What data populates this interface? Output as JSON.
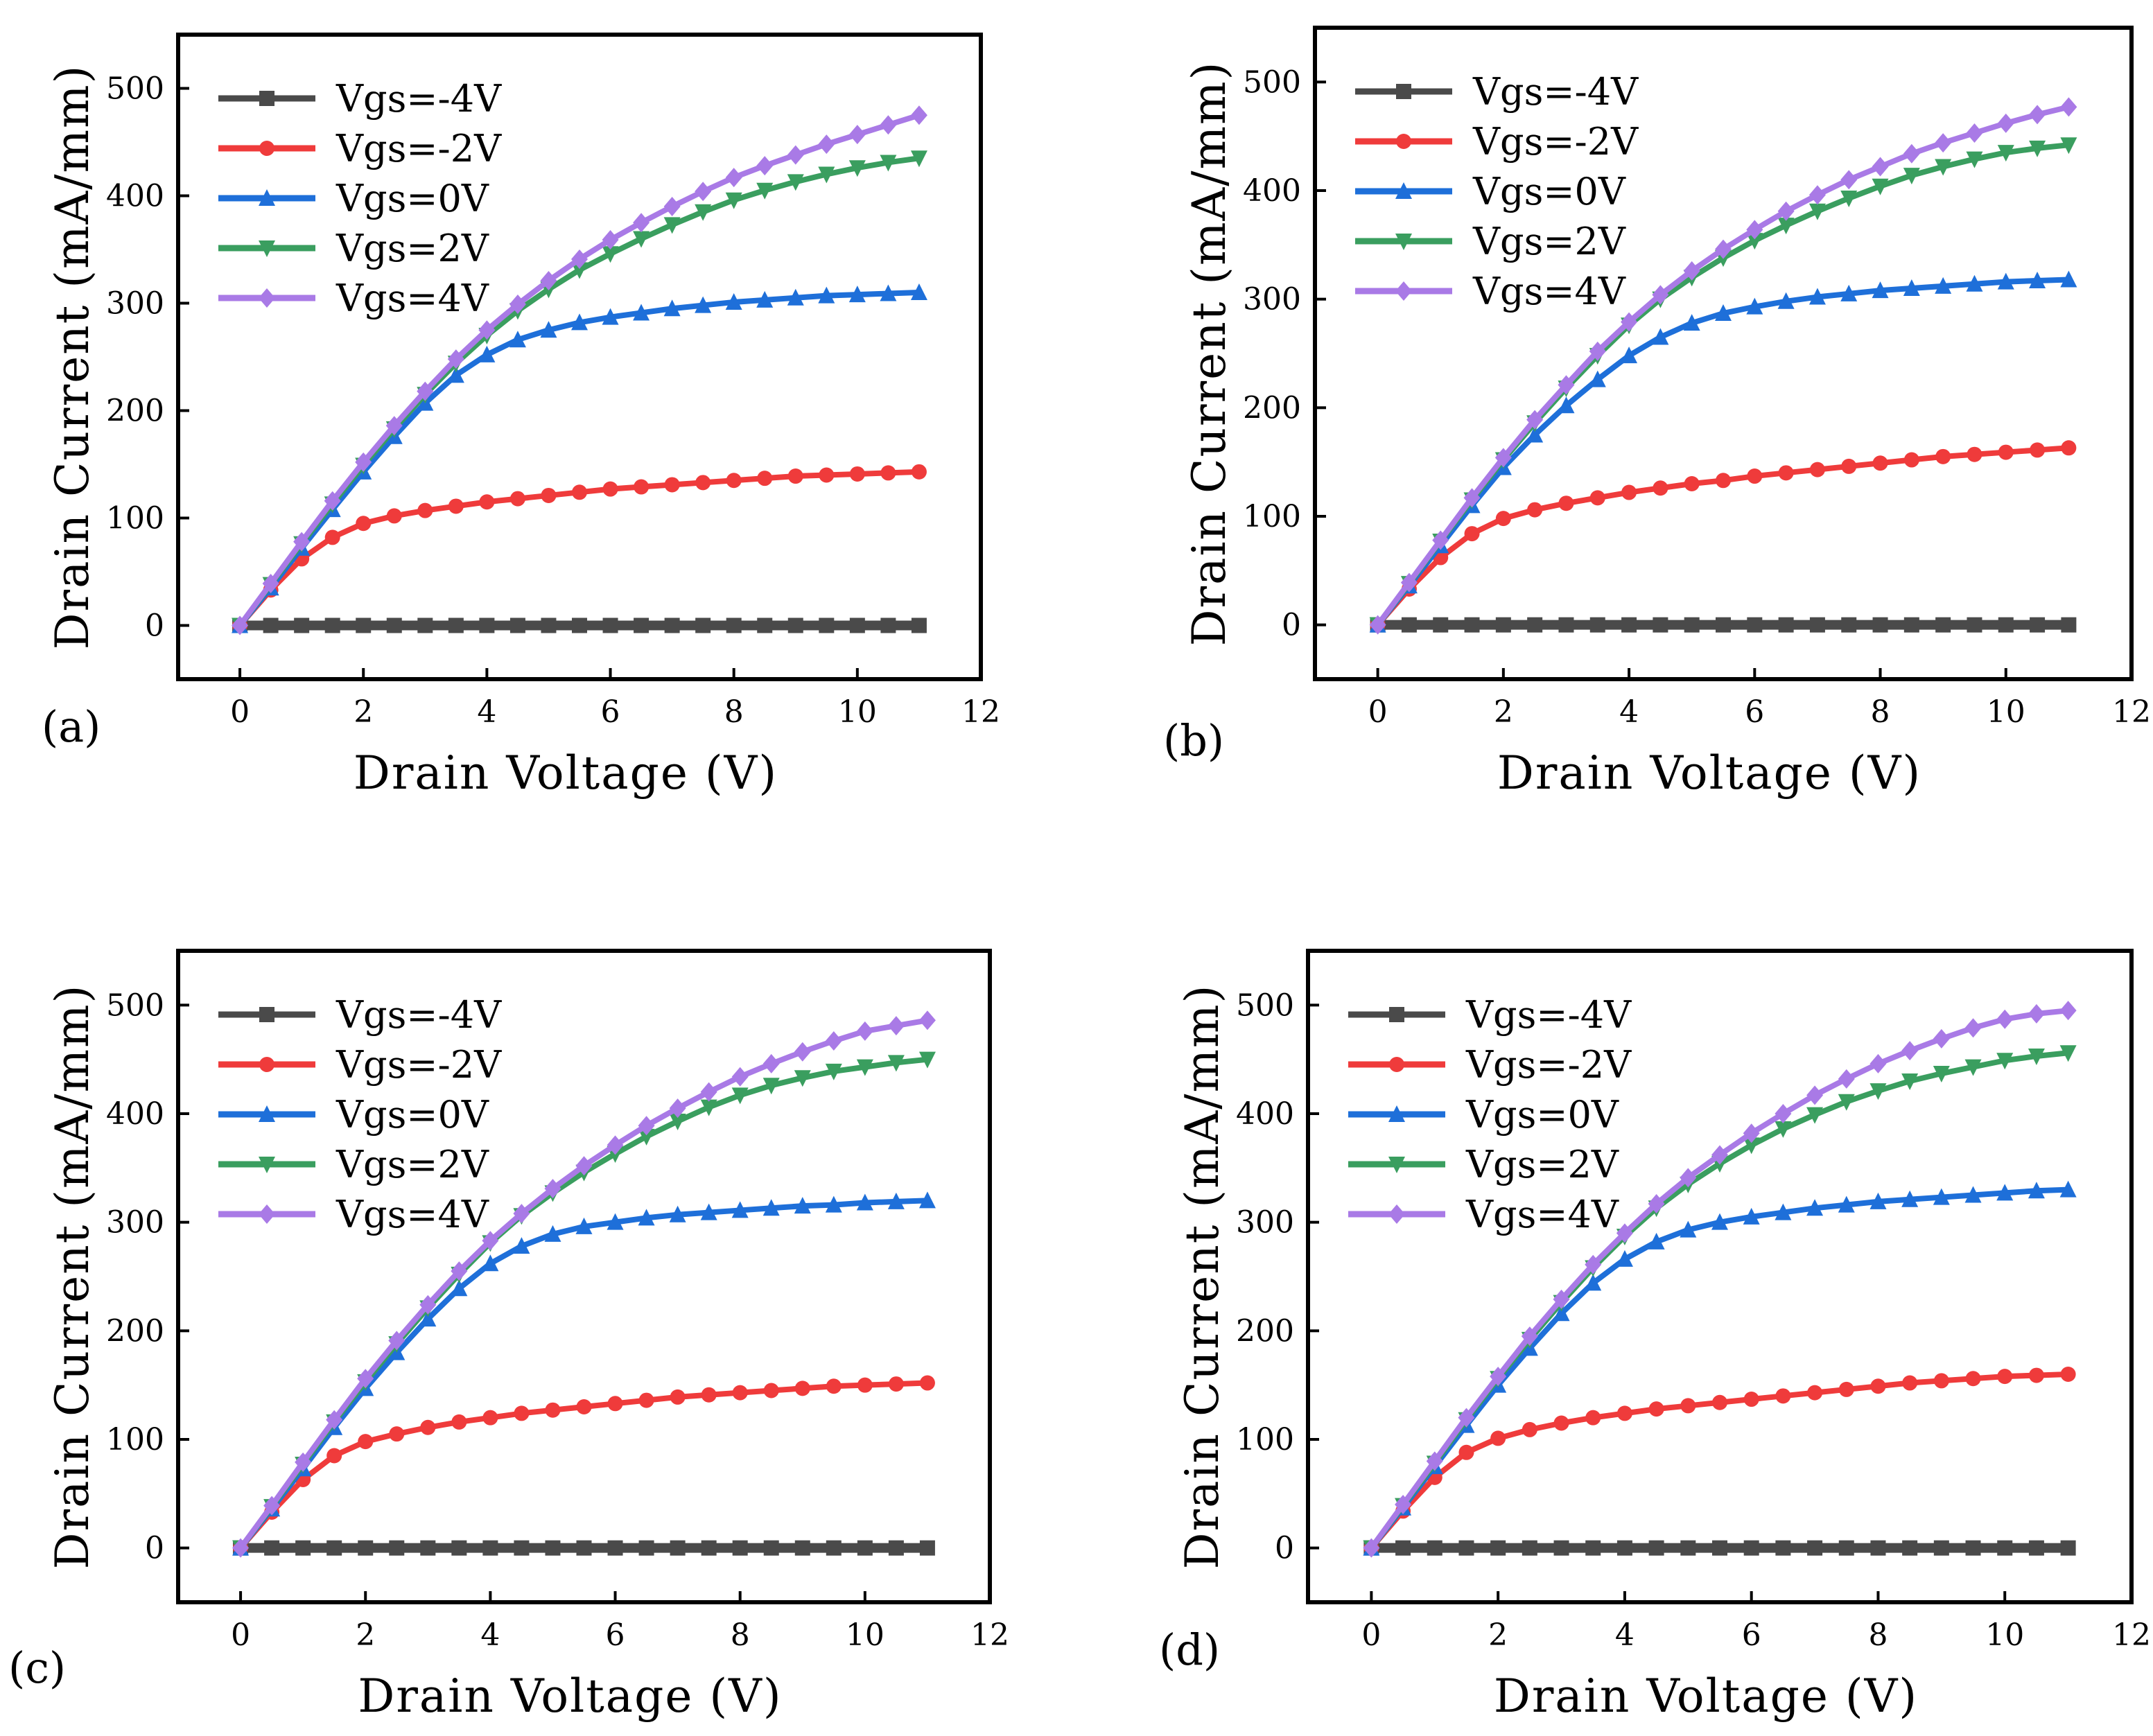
{
  "colors": {
    "Vgs=-4V": "#4a4a4a",
    "Vgs=-2V": "#ef3b3b",
    "Vgs=0V": "#1e6fd9",
    "Vgs=2V": "#3a9e5f",
    "Vgs=4V": "#a97ae6"
  },
  "chart_data": [
    {
      "panel_label": "(a)",
      "type": "line",
      "xlabel": "Drain Voltage (V)",
      "ylabel": "Drain Current (mA/mm)",
      "xlim": [
        -1,
        12
      ],
      "ylim": [
        -50,
        550
      ],
      "xticks": [
        0,
        2,
        4,
        6,
        8,
        10,
        12
      ],
      "yticks": [
        0,
        100,
        200,
        300,
        400,
        500
      ],
      "legend_position": "top-left",
      "x": [
        0,
        0.5,
        1,
        1.5,
        2,
        2.5,
        3,
        3.5,
        4,
        4.5,
        5,
        5.5,
        6,
        6.5,
        7,
        7.5,
        8,
        8.5,
        9,
        9.5,
        10,
        10.5,
        11
      ],
      "series": [
        {
          "name": "Vgs=-4V",
          "marker": "square",
          "values": [
            0,
            0,
            0,
            0,
            0,
            0,
            0,
            0,
            0,
            0,
            0,
            0,
            0,
            0,
            0,
            0,
            0,
            0,
            0,
            0,
            0,
            0,
            0
          ]
        },
        {
          "name": "Vgs=-2V",
          "marker": "circle",
          "values": [
            0,
            33,
            62,
            82,
            95,
            102,
            107,
            111,
            115,
            118,
            121,
            124,
            127,
            129,
            131,
            133,
            135,
            137,
            139,
            140,
            141,
            142,
            143
          ]
        },
        {
          "name": "Vgs=0V",
          "marker": "triangle-up",
          "values": [
            0,
            35,
            72,
            108,
            143,
            176,
            207,
            233,
            252,
            266,
            275,
            282,
            287,
            291,
            295,
            298,
            301,
            303,
            305,
            307,
            308,
            309,
            310
          ]
        },
        {
          "name": "Vgs=2V",
          "marker": "triangle-down",
          "values": [
            0,
            38,
            76,
            113,
            149,
            183,
            215,
            244,
            270,
            293,
            313,
            331,
            346,
            360,
            373,
            385,
            396,
            405,
            413,
            420,
            426,
            431,
            435
          ]
        },
        {
          "name": "Vgs=4V",
          "marker": "diamond",
          "values": [
            0,
            39,
            78,
            116,
            152,
            186,
            218,
            248,
            275,
            299,
            321,
            341,
            359,
            375,
            390,
            404,
            417,
            428,
            438,
            448,
            457,
            466,
            475
          ]
        }
      ]
    },
    {
      "panel_label": "(b)",
      "type": "line",
      "xlabel": "Drain Voltage (V)",
      "ylabel": "Drain Current (mA/mm)",
      "xlim": [
        -1,
        12
      ],
      "ylim": [
        -50,
        550
      ],
      "xticks": [
        0,
        2,
        4,
        6,
        8,
        10,
        12
      ],
      "yticks": [
        0,
        100,
        200,
        300,
        400,
        500
      ],
      "legend_position": "top-left",
      "x": [
        0,
        0.5,
        1,
        1.5,
        2,
        2.5,
        3,
        3.5,
        4,
        4.5,
        5,
        5.5,
        6,
        6.5,
        7,
        7.5,
        8,
        8.5,
        9,
        9.5,
        10,
        10.5,
        11
      ],
      "series": [
        {
          "name": "Vgs=-4V",
          "marker": "square",
          "values": [
            0,
            0,
            0,
            0,
            0,
            0,
            0,
            0,
            0,
            0,
            0,
            0,
            0,
            0,
            0,
            0,
            0,
            0,
            0,
            0,
            0,
            0,
            0
          ]
        },
        {
          "name": "Vgs=-2V",
          "marker": "circle",
          "values": [
            0,
            33,
            62,
            84,
            98,
            106,
            112,
            117,
            122,
            126,
            130,
            133,
            137,
            140,
            143,
            146,
            149,
            152,
            155,
            157,
            159,
            161,
            163
          ]
        },
        {
          "name": "Vgs=0V",
          "marker": "triangle-up",
          "values": [
            0,
            36,
            73,
            110,
            145,
            175,
            202,
            226,
            248,
            265,
            278,
            287,
            293,
            298,
            302,
            305,
            308,
            310,
            312,
            314,
            316,
            317,
            318
          ]
        },
        {
          "name": "Vgs=2V",
          "marker": "triangle-down",
          "values": [
            0,
            38,
            77,
            115,
            152,
            186,
            218,
            248,
            276,
            300,
            320,
            338,
            354,
            368,
            381,
            393,
            404,
            414,
            422,
            429,
            435,
            439,
            442
          ]
        },
        {
          "name": "Vgs=4V",
          "marker": "diamond",
          "values": [
            0,
            39,
            78,
            117,
            154,
            189,
            221,
            252,
            279,
            304,
            326,
            346,
            364,
            381,
            396,
            410,
            422,
            434,
            444,
            453,
            462,
            470,
            477
          ]
        }
      ]
    },
    {
      "panel_label": "(c)",
      "type": "line",
      "xlabel": "Drain Voltage (V)",
      "ylabel": "Drain Current (mA/mm)",
      "xlim": [
        -1,
        12
      ],
      "ylim": [
        -50,
        550
      ],
      "xticks": [
        0,
        2,
        4,
        6,
        8,
        10,
        12
      ],
      "yticks": [
        0,
        100,
        200,
        300,
        400,
        500
      ],
      "legend_position": "top-left",
      "x": [
        0,
        0.5,
        1,
        1.5,
        2,
        2.5,
        3,
        3.5,
        4,
        4.5,
        5,
        5.5,
        6,
        6.5,
        7,
        7.5,
        8,
        8.5,
        9,
        9.5,
        10,
        10.5,
        11
      ],
      "series": [
        {
          "name": "Vgs=-4V",
          "marker": "square",
          "values": [
            0,
            0,
            0,
            0,
            0,
            0,
            0,
            0,
            0,
            0,
            0,
            0,
            0,
            0,
            0,
            0,
            0,
            0,
            0,
            0,
            0,
            0,
            0
          ]
        },
        {
          "name": "Vgs=-2V",
          "marker": "circle",
          "values": [
            0,
            33,
            63,
            85,
            98,
            105,
            111,
            116,
            120,
            124,
            127,
            130,
            133,
            136,
            139,
            141,
            143,
            145,
            147,
            149,
            150,
            151,
            152
          ]
        },
        {
          "name": "Vgs=0V",
          "marker": "triangle-up",
          "values": [
            0,
            36,
            73,
            111,
            147,
            180,
            211,
            239,
            262,
            278,
            289,
            296,
            300,
            304,
            307,
            309,
            311,
            313,
            315,
            316,
            318,
            319,
            320
          ]
        },
        {
          "name": "Vgs=2V",
          "marker": "triangle-down",
          "values": [
            0,
            38,
            77,
            116,
            153,
            188,
            221,
            252,
            281,
            306,
            327,
            346,
            363,
            379,
            393,
            406,
            417,
            426,
            433,
            439,
            443,
            447,
            450
          ]
        },
        {
          "name": "Vgs=4V",
          "marker": "diamond",
          "values": [
            0,
            39,
            79,
            118,
            156,
            191,
            224,
            255,
            283,
            308,
            331,
            352,
            371,
            389,
            405,
            420,
            434,
            446,
            457,
            467,
            476,
            481,
            486
          ]
        }
      ]
    },
    {
      "panel_label": "(d)",
      "type": "line",
      "xlabel": "Drain Voltage (V)",
      "ylabel": "Drain Current (mA/mm)",
      "xlim": [
        -1,
        12
      ],
      "ylim": [
        -50,
        550
      ],
      "xticks": [
        0,
        2,
        4,
        6,
        8,
        10,
        12
      ],
      "yticks": [
        0,
        100,
        200,
        300,
        400,
        500
      ],
      "legend_position": "top-left",
      "x": [
        0,
        0.5,
        1,
        1.5,
        2,
        2.5,
        3,
        3.5,
        4,
        4.5,
        5,
        5.5,
        6,
        6.5,
        7,
        7.5,
        8,
        8.5,
        9,
        9.5,
        10,
        10.5,
        11
      ],
      "series": [
        {
          "name": "Vgs=-4V",
          "marker": "square",
          "values": [
            0,
            0,
            0,
            0,
            0,
            0,
            0,
            0,
            0,
            0,
            0,
            0,
            0,
            0,
            0,
            0,
            0,
            0,
            0,
            0,
            0,
            0,
            0
          ]
        },
        {
          "name": "Vgs=-2V",
          "marker": "circle",
          "values": [
            0,
            34,
            65,
            88,
            101,
            109,
            115,
            120,
            124,
            128,
            131,
            134,
            137,
            140,
            143,
            146,
            149,
            152,
            154,
            156,
            158,
            159,
            160
          ]
        },
        {
          "name": "Vgs=0V",
          "marker": "triangle-up",
          "values": [
            0,
            37,
            75,
            113,
            150,
            184,
            216,
            244,
            266,
            282,
            293,
            300,
            305,
            309,
            313,
            316,
            319,
            321,
            323,
            325,
            327,
            329,
            330
          ]
        },
        {
          "name": "Vgs=2V",
          "marker": "triangle-down",
          "values": [
            0,
            39,
            78,
            118,
            156,
            192,
            226,
            258,
            287,
            313,
            335,
            354,
            371,
            386,
            399,
            411,
            421,
            430,
            437,
            443,
            449,
            453,
            456
          ]
        },
        {
          "name": "Vgs=4V",
          "marker": "diamond",
          "values": [
            0,
            40,
            80,
            120,
            158,
            195,
            229,
            261,
            290,
            317,
            341,
            362,
            382,
            400,
            417,
            432,
            446,
            458,
            469,
            479,
            487,
            492,
            495
          ]
        }
      ]
    }
  ]
}
